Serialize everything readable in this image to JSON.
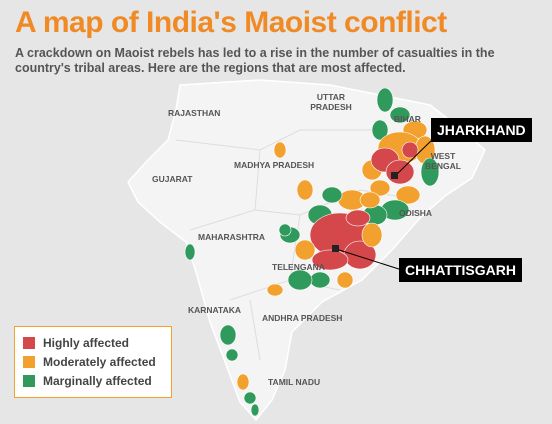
{
  "header": {
    "title": "A map of India's Maoist conflict",
    "subtitle": "A crackdown on Maoist rebels has led to a rise in the number of casualties in the country's tribal areas. Here are the regions that are most affected."
  },
  "map": {
    "regions": [
      {
        "label": "RAJASTHAN"
      },
      {
        "label": "UTTAR PRADESH"
      },
      {
        "label": "BIHAR"
      },
      {
        "label": "WEST BENGAL"
      },
      {
        "label": "MADHYA PRADESH"
      },
      {
        "label": "GUJARAT"
      },
      {
        "label": "MAHARASHTRA"
      },
      {
        "label": "ODISHA"
      },
      {
        "label": "TELENGANA"
      },
      {
        "label": "KARNATAKA"
      },
      {
        "label": "ANDHRA PRADESH"
      },
      {
        "label": "TAMIL NADU"
      }
    ],
    "callouts": [
      {
        "label": "JHARKHAND"
      },
      {
        "label": "CHHATTISGARH"
      }
    ]
  },
  "legend": {
    "items": [
      {
        "label": "Highly affected",
        "color": "#d4484b"
      },
      {
        "label": "Moderately affected",
        "color": "#f2a12e"
      },
      {
        "label": "Marginally affected",
        "color": "#2f9a5c"
      }
    ]
  }
}
